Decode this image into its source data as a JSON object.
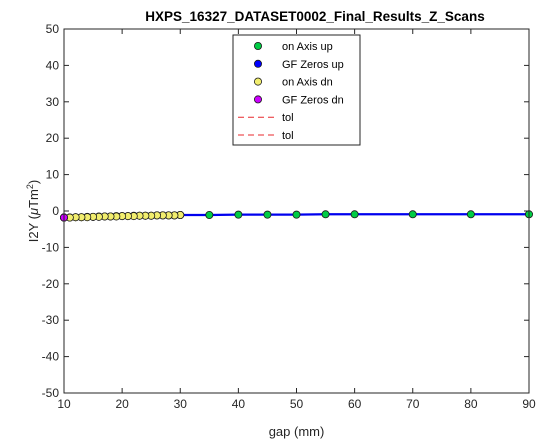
{
  "chart_data": {
    "type": "scatter",
    "title": "HXPS_16327_DATASET0002_Final_Results_Z_Scans",
    "xlabel": "gap (mm)",
    "ylabel_prefix": "I2Y (",
    "ylabel_mu": "μ",
    "ylabel_unit": "Tm",
    "ylabel_sup": "2",
    "ylabel_suffix": ")",
    "xlim": [
      10,
      90
    ],
    "ylim": [
      -50,
      50
    ],
    "xticks": [
      10,
      20,
      30,
      40,
      50,
      60,
      70,
      80,
      90
    ],
    "yticks": [
      -50,
      -40,
      -30,
      -20,
      -10,
      0,
      10,
      20,
      30,
      40,
      50
    ],
    "grid": false,
    "legend_position": "top-center",
    "series": [
      {
        "name": "on Axis up",
        "marker": "circle",
        "color": "#00cc44",
        "line_color": "#0000ee",
        "x": [
          10,
          11,
          12,
          13,
          14,
          15,
          16,
          17,
          18,
          19,
          20,
          21,
          22,
          23,
          24,
          25,
          26,
          27,
          28,
          29,
          30,
          35,
          40,
          45,
          50,
          55,
          60,
          70,
          80,
          90
        ],
        "y": [
          -1.8,
          -1.8,
          -1.7,
          -1.7,
          -1.6,
          -1.6,
          -1.5,
          -1.5,
          -1.5,
          -1.4,
          -1.4,
          -1.4,
          -1.3,
          -1.3,
          -1.3,
          -1.3,
          -1.2,
          -1.2,
          -1.2,
          -1.2,
          -1.1,
          -1.1,
          -1.0,
          -1.0,
          -1.0,
          -0.9,
          -0.9,
          -0.9,
          -0.9,
          -0.9
        ]
      },
      {
        "name": "GF Zeros up",
        "marker": "circle",
        "color": "#0000ff",
        "x": [
          10
        ],
        "y": [
          -1.8
        ]
      },
      {
        "name": "on Axis dn",
        "marker": "circle",
        "color": "#f2ee6e",
        "x": [
          30,
          29,
          28,
          27,
          26,
          25,
          24,
          23,
          22,
          21,
          20,
          19,
          18,
          17,
          16,
          15,
          14,
          13,
          12,
          11,
          10
        ],
        "y": [
          -1.1,
          -1.2,
          -1.2,
          -1.2,
          -1.2,
          -1.3,
          -1.3,
          -1.3,
          -1.4,
          -1.4,
          -1.4,
          -1.5,
          -1.5,
          -1.5,
          -1.6,
          -1.6,
          -1.7,
          -1.7,
          -1.7,
          -1.8,
          -1.8
        ]
      },
      {
        "name": "GF Zeros dn",
        "marker": "circle",
        "color": "#cc00ff",
        "x": [
          10
        ],
        "y": [
          -1.8
        ]
      },
      {
        "name": "tol",
        "marker": "dashed-line",
        "color": "#e8282e",
        "y_const": 50
      },
      {
        "name": "tol",
        "marker": "dashed-line",
        "color": "#e8282e",
        "y_const": -50
      }
    ]
  }
}
